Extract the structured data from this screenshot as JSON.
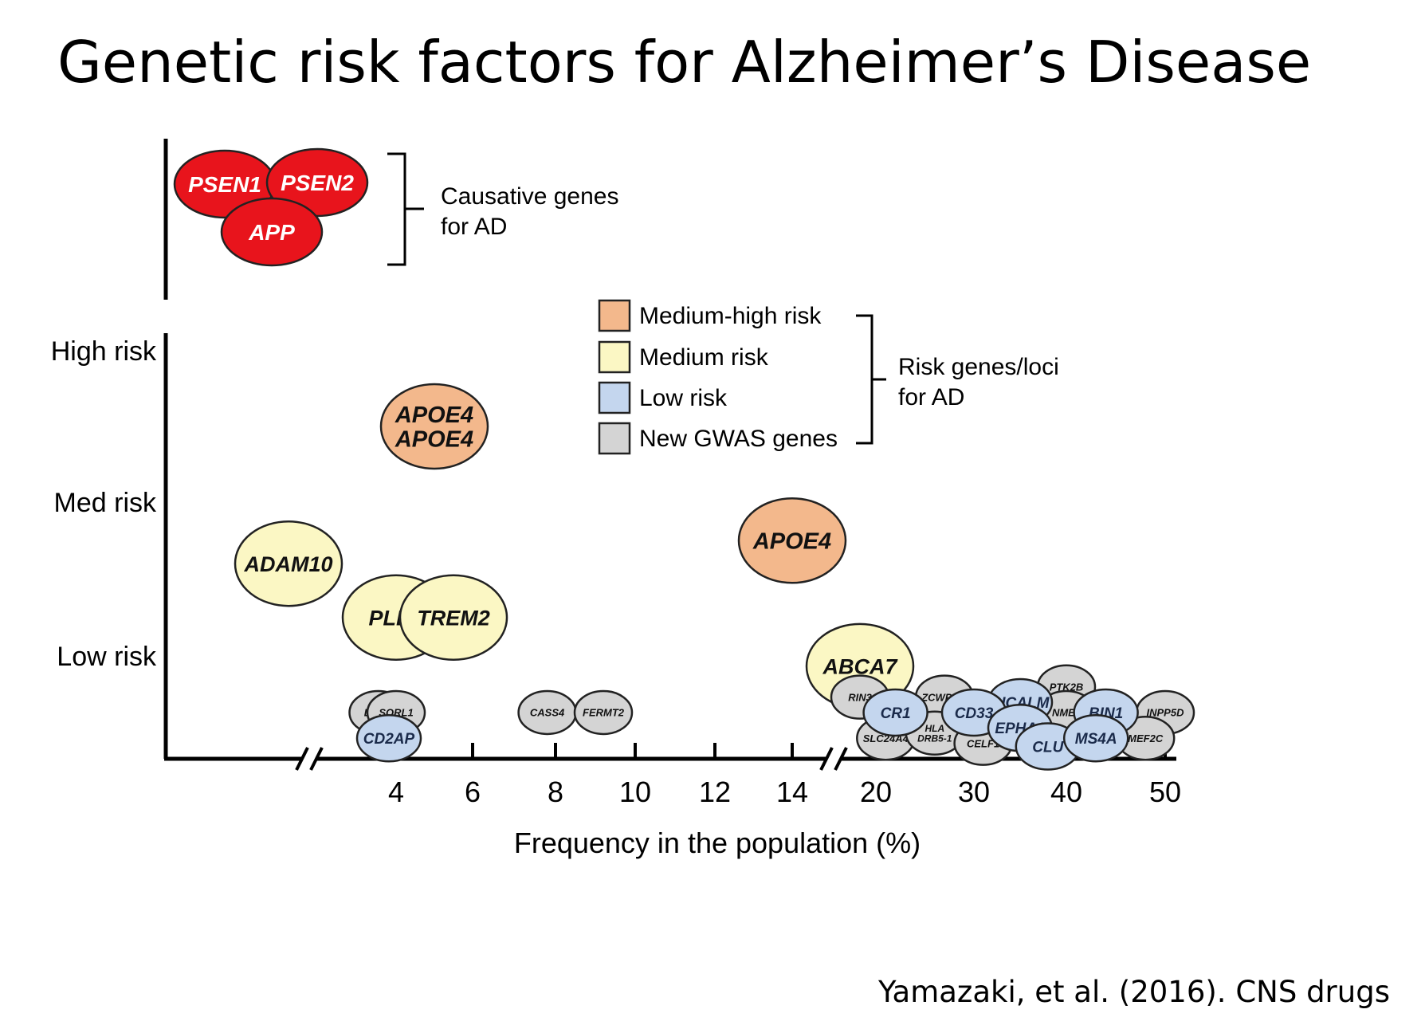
{
  "title": "Genetic risk factors for Alzheimer’s Disease",
  "citation": "Yamazaki, et al. (2016). CNS drugs",
  "colors": {
    "causative": "#e8141c",
    "medium_high": "#f3b88c",
    "medium": "#fbf7c4",
    "low": "#c4d6ee",
    "gwas": "#d4d4d4",
    "stroke": "#222222"
  },
  "causative": {
    "genes": [
      "PSEN1",
      "PSEN2",
      "APP"
    ],
    "label_lines": [
      "Causative genes",
      "for AD"
    ]
  },
  "legend": {
    "items": [
      {
        "key": "medium_high",
        "label": "Medium-high risk"
      },
      {
        "key": "medium",
        "label": "Medium risk"
      },
      {
        "key": "low",
        "label": "Low risk"
      },
      {
        "key": "gwas",
        "label": "New GWAS genes"
      }
    ],
    "group_label_lines": [
      "Risk genes/loci",
      "for AD"
    ]
  },
  "chart_data": {
    "type": "scatter",
    "xlabel": "Frequency in the population (%)",
    "x_ticks": [
      4,
      6,
      8,
      10,
      12,
      14,
      20,
      30,
      40,
      50
    ],
    "x_axis_breaks": [
      "below 3",
      "between 15 and 18"
    ],
    "y_levels": [
      "High risk",
      "Med risk",
      "Low risk"
    ],
    "points": [
      {
        "gene": "APOE4 APOE4",
        "lines": [
          "APOE4",
          "APOE4"
        ],
        "category": "medium_high",
        "x": 5,
        "y": 2.5
      },
      {
        "gene": "APOE4",
        "lines": [
          "APOE4"
        ],
        "category": "medium_high",
        "x": 14,
        "y": 1.75
      },
      {
        "gene": "ADAM10",
        "lines": [
          "ADAM10"
        ],
        "category": "medium",
        "x": 1,
        "y": 1.6
      },
      {
        "gene": "PLD3",
        "lines": [
          "PLD3"
        ],
        "category": "medium",
        "x": 4,
        "y": 1.25
      },
      {
        "gene": "TREM2",
        "lines": [
          "TREM2"
        ],
        "category": "medium",
        "x": 5.5,
        "y": 1.25
      },
      {
        "gene": "ABCA7",
        "lines": [
          "ABCA7"
        ],
        "category": "medium",
        "x": 19,
        "y": 0.9
      },
      {
        "gene": "DSG2",
        "lines": [
          "DSG2"
        ],
        "category": "gwas",
        "x": 3.5,
        "y": 0.45
      },
      {
        "gene": "SORL1",
        "lines": [
          "SORL1"
        ],
        "category": "gwas",
        "x": 4,
        "y": 0.45
      },
      {
        "gene": "CD2AP",
        "lines": [
          "CD2AP"
        ],
        "category": "low",
        "x": 3.8,
        "y": 0.2
      },
      {
        "gene": "CASS4",
        "lines": [
          "CASS4"
        ],
        "category": "gwas",
        "x": 7.8,
        "y": 0.45
      },
      {
        "gene": "FERMT2",
        "lines": [
          "FERMT2"
        ],
        "category": "gwas",
        "x": 9.2,
        "y": 0.45
      },
      {
        "gene": "RIN3",
        "lines": [
          "RIN3"
        ],
        "category": "gwas",
        "x": 19,
        "y": 0.6
      },
      {
        "gene": "ZCWPW1",
        "lines": [
          "ZCWPW1"
        ],
        "category": "gwas",
        "x": 27,
        "y": 0.6
      },
      {
        "gene": "PTK2B",
        "lines": [
          "PTK2B"
        ],
        "category": "gwas",
        "x": 40,
        "y": 0.7
      },
      {
        "gene": "PICALM",
        "lines": [
          "PICALM"
        ],
        "category": "low",
        "x": 35,
        "y": 0.55
      },
      {
        "gene": "CR1",
        "lines": [
          "CR1"
        ],
        "category": "low",
        "x": 22,
        "y": 0.45
      },
      {
        "gene": "CD33",
        "lines": [
          "CD33"
        ],
        "category": "low",
        "x": 30,
        "y": 0.45
      },
      {
        "gene": "NME8",
        "lines": [
          "NME8"
        ],
        "category": "gwas",
        "x": 40,
        "y": 0.45
      },
      {
        "gene": "BIN1",
        "lines": [
          "BIN1"
        ],
        "category": "low",
        "x": 44,
        "y": 0.45
      },
      {
        "gene": "INPP5D",
        "lines": [
          "INPP5D"
        ],
        "category": "gwas",
        "x": 50,
        "y": 0.45
      },
      {
        "gene": "SLC24A4",
        "lines": [
          "SLC24A4"
        ],
        "category": "gwas",
        "x": 21,
        "y": 0.2
      },
      {
        "gene": "HLA DRB5-1",
        "lines": [
          "HLA",
          "DRB5-1"
        ],
        "category": "gwas",
        "x": 26,
        "y": 0.25
      },
      {
        "gene": "CELF1",
        "lines": [
          "CELF1"
        ],
        "category": "gwas",
        "x": 31,
        "y": 0.15
      },
      {
        "gene": "EPHA1",
        "lines": [
          "EPHA1"
        ],
        "category": "low",
        "x": 35,
        "y": 0.3
      },
      {
        "gene": "CLU",
        "lines": [
          "CLU"
        ],
        "category": "low",
        "x": 38,
        "y": 0.12
      },
      {
        "gene": "MS4A",
        "lines": [
          "MS4A"
        ],
        "category": "low",
        "x": 43,
        "y": 0.2
      },
      {
        "gene": "MEF2C",
        "lines": [
          "MEF2C"
        ],
        "category": "gwas",
        "x": 48,
        "y": 0.2
      }
    ],
    "grid": false,
    "legend_position": "top-right"
  }
}
